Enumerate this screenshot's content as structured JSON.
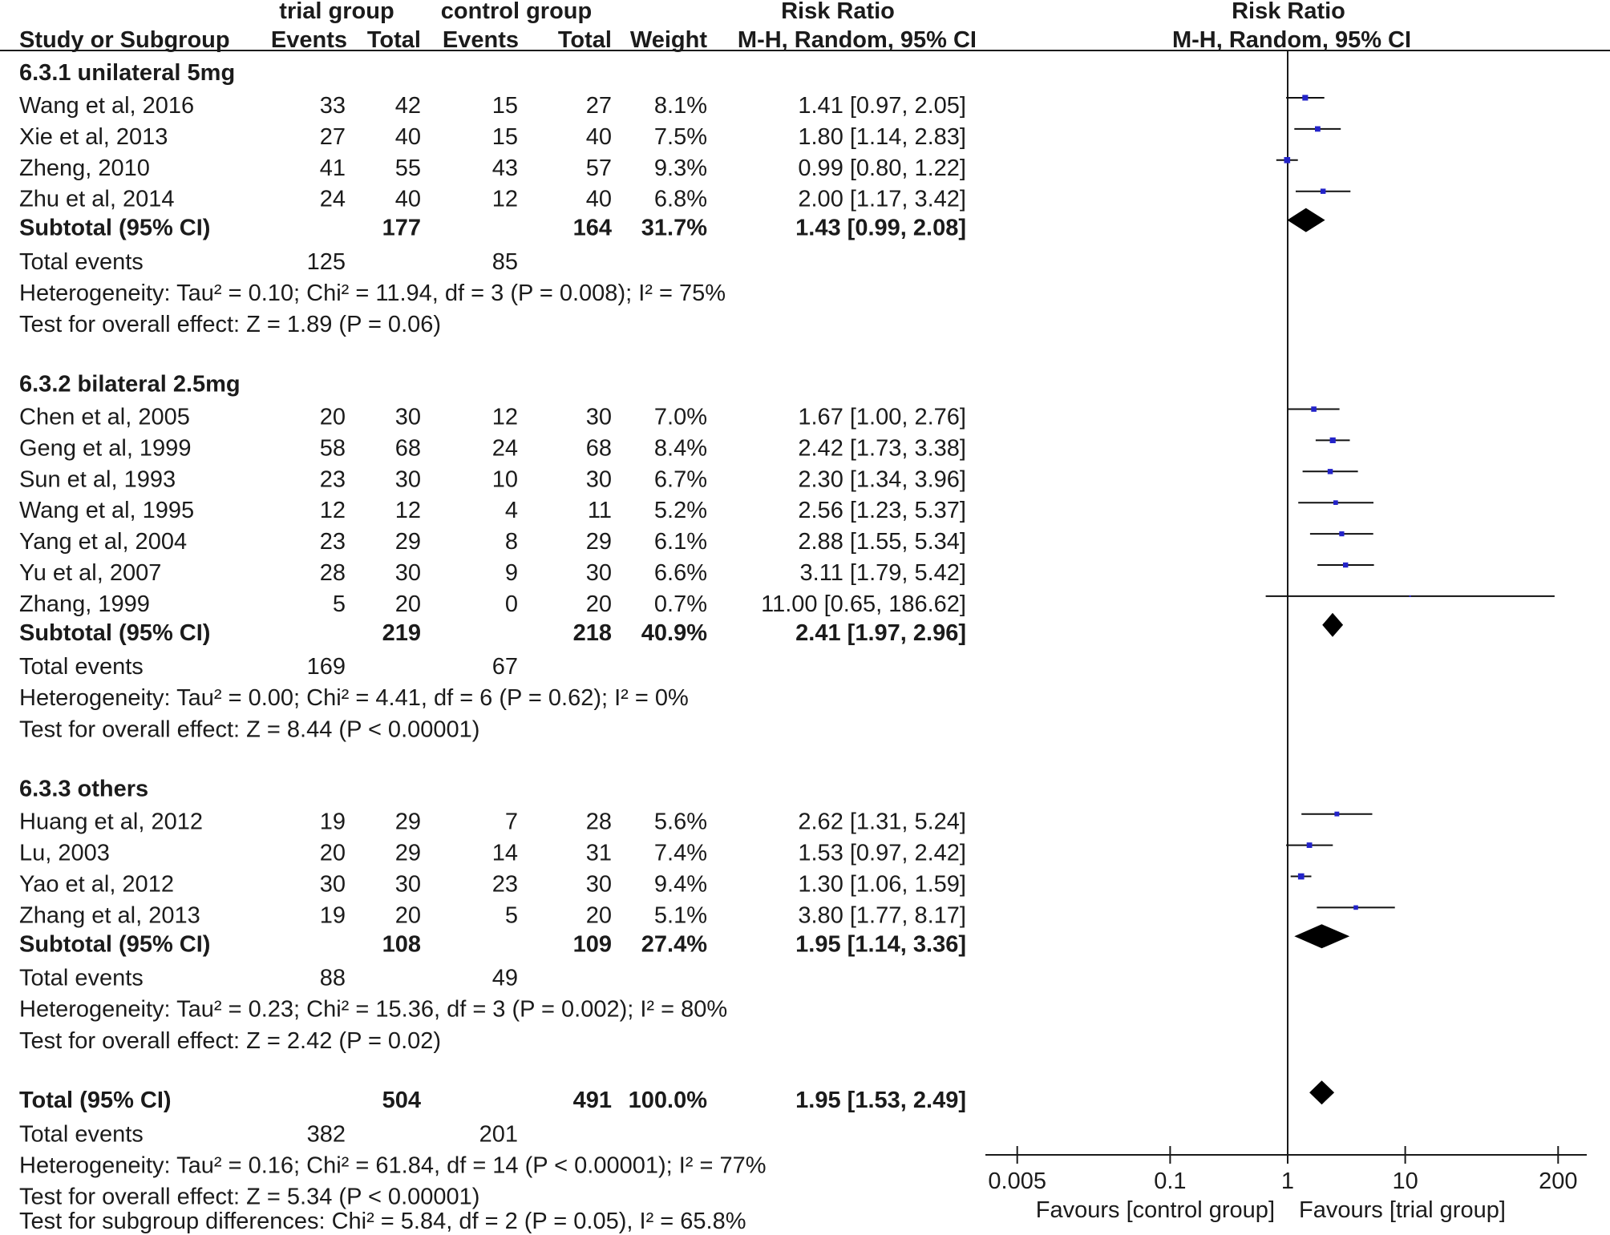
{
  "chart_data": {
    "type": "scatter",
    "title": "Risk Ratio",
    "subtitle": "M-H, Random, 95% CI",
    "columns": {
      "trial_group": "trial group",
      "control_group": "control group",
      "effect_title": "Risk Ratio",
      "study": "Study or Subgroup",
      "trial_events": "Events",
      "trial_total": "Total",
      "control_events": "Events",
      "control_total": "Total",
      "weight": "Weight",
      "effect_method": "M-H, Random, 95% CI"
    },
    "xlim": [
      0.005,
      200
    ],
    "x_ticks": [
      0.005,
      0.1,
      1,
      10,
      200
    ],
    "xlabel_left": "Favours [control group]",
    "xlabel_right": "Favours [trial group]",
    "subgroups": [
      {
        "label": "6.3.1 unilateral 5mg",
        "studies": [
          {
            "study": "Wang et al, 2016",
            "trial_events": 33,
            "trial_total": 42,
            "control_events": 15,
            "control_total": 27,
            "weight": "8.1%",
            "rr": 1.41,
            "ci_low": 0.97,
            "ci_high": 2.05,
            "effect_text": "1.41 [0.97, 2.05]"
          },
          {
            "study": "Xie et al, 2013",
            "trial_events": 27,
            "trial_total": 40,
            "control_events": 15,
            "control_total": 40,
            "weight": "7.5%",
            "rr": 1.8,
            "ci_low": 1.14,
            "ci_high": 2.83,
            "effect_text": "1.80 [1.14, 2.83]"
          },
          {
            "study": "Zheng, 2010",
            "trial_events": 41,
            "trial_total": 55,
            "control_events": 43,
            "control_total": 57,
            "weight": "9.3%",
            "rr": 0.99,
            "ci_low": 0.8,
            "ci_high": 1.22,
            "effect_text": "0.99 [0.80, 1.22]"
          },
          {
            "study": "Zhu et al, 2014",
            "trial_events": 24,
            "trial_total": 40,
            "control_events": 12,
            "control_total": 40,
            "weight": "6.8%",
            "rr": 2.0,
            "ci_low": 1.17,
            "ci_high": 3.42,
            "effect_text": "2.00 [1.17, 3.42]"
          }
        ],
        "subtotal": {
          "label": "Subtotal (95% CI)",
          "trial_total": 177,
          "control_total": 164,
          "weight": "31.7%",
          "rr": 1.43,
          "ci_low": 0.99,
          "ci_high": 2.08,
          "effect_text": "1.43 [0.99, 2.08]"
        },
        "total_events": {
          "label": "Total events",
          "trial": 125,
          "control": 85
        },
        "heterogeneity": "Heterogeneity: Tau² = 0.10; Chi² = 11.94, df = 3 (P = 0.008); I² = 75%",
        "overall_effect": "Test for overall effect: Z = 1.89 (P = 0.06)"
      },
      {
        "label": "6.3.2 bilateral 2.5mg",
        "studies": [
          {
            "study": "Chen et al, 2005",
            "trial_events": 20,
            "trial_total": 30,
            "control_events": 12,
            "control_total": 30,
            "weight": "7.0%",
            "rr": 1.67,
            "ci_low": 1.0,
            "ci_high": 2.76,
            "effect_text": "1.67 [1.00, 2.76]"
          },
          {
            "study": "Geng et al, 1999",
            "trial_events": 58,
            "trial_total": 68,
            "control_events": 24,
            "control_total": 68,
            "weight": "8.4%",
            "rr": 2.42,
            "ci_low": 1.73,
            "ci_high": 3.38,
            "effect_text": "2.42 [1.73, 3.38]"
          },
          {
            "study": "Sun et al, 1993",
            "trial_events": 23,
            "trial_total": 30,
            "control_events": 10,
            "control_total": 30,
            "weight": "6.7%",
            "rr": 2.3,
            "ci_low": 1.34,
            "ci_high": 3.96,
            "effect_text": "2.30 [1.34, 3.96]"
          },
          {
            "study": "Wang et al, 1995",
            "trial_events": 12,
            "trial_total": 12,
            "control_events": 4,
            "control_total": 11,
            "weight": "5.2%",
            "rr": 2.56,
            "ci_low": 1.23,
            "ci_high": 5.37,
            "effect_text": "2.56 [1.23, 5.37]"
          },
          {
            "study": "Yang et al, 2004",
            "trial_events": 23,
            "trial_total": 29,
            "control_events": 8,
            "control_total": 29,
            "weight": "6.1%",
            "rr": 2.88,
            "ci_low": 1.55,
            "ci_high": 5.34,
            "effect_text": "2.88 [1.55, 5.34]"
          },
          {
            "study": "Yu et al, 2007",
            "trial_events": 28,
            "trial_total": 30,
            "control_events": 9,
            "control_total": 30,
            "weight": "6.6%",
            "rr": 3.11,
            "ci_low": 1.79,
            "ci_high": 5.42,
            "effect_text": "3.11 [1.79, 5.42]"
          },
          {
            "study": "Zhang, 1999",
            "trial_events": 5,
            "trial_total": 20,
            "control_events": 0,
            "control_total": 20,
            "weight": "0.7%",
            "rr": 11.0,
            "ci_low": 0.65,
            "ci_high": 186.62,
            "effect_text": "11.00 [0.65, 186.62]"
          }
        ],
        "subtotal": {
          "label": "Subtotal (95% CI)",
          "trial_total": 219,
          "control_total": 218,
          "weight": "40.9%",
          "rr": 2.41,
          "ci_low": 1.97,
          "ci_high": 2.96,
          "effect_text": "2.41 [1.97, 2.96]"
        },
        "total_events": {
          "label": "Total events",
          "trial": 169,
          "control": 67
        },
        "heterogeneity": "Heterogeneity: Tau² = 0.00; Chi² = 4.41, df = 6 (P = 0.62); I² = 0%",
        "overall_effect": "Test for overall effect: Z = 8.44 (P < 0.00001)"
      },
      {
        "label": "6.3.3 others",
        "studies": [
          {
            "study": "Huang et al, 2012",
            "trial_events": 19,
            "trial_total": 29,
            "control_events": 7,
            "control_total": 28,
            "weight": "5.6%",
            "rr": 2.62,
            "ci_low": 1.31,
            "ci_high": 5.24,
            "effect_text": "2.62 [1.31, 5.24]"
          },
          {
            "study": "Lu, 2003",
            "trial_events": 20,
            "trial_total": 29,
            "control_events": 14,
            "control_total": 31,
            "weight": "7.4%",
            "rr": 1.53,
            "ci_low": 0.97,
            "ci_high": 2.42,
            "effect_text": "1.53 [0.97, 2.42]"
          },
          {
            "study": "Yao et al, 2012",
            "trial_events": 30,
            "trial_total": 30,
            "control_events": 23,
            "control_total": 30,
            "weight": "9.4%",
            "rr": 1.3,
            "ci_low": 1.06,
            "ci_high": 1.59,
            "effect_text": "1.30 [1.06, 1.59]"
          },
          {
            "study": "Zhang et al, 2013",
            "trial_events": 19,
            "trial_total": 20,
            "control_events": 5,
            "control_total": 20,
            "weight": "5.1%",
            "rr": 3.8,
            "ci_low": 1.77,
            "ci_high": 8.17,
            "effect_text": "3.80 [1.77, 8.17]"
          }
        ],
        "subtotal": {
          "label": "Subtotal (95% CI)",
          "trial_total": 108,
          "control_total": 109,
          "weight": "27.4%",
          "rr": 1.95,
          "ci_low": 1.14,
          "ci_high": 3.36,
          "effect_text": "1.95 [1.14, 3.36]"
        },
        "total_events": {
          "label": "Total events",
          "trial": 88,
          "control": 49
        },
        "heterogeneity": "Heterogeneity: Tau² = 0.23; Chi² = 15.36, df = 3 (P = 0.002); I² = 80%",
        "overall_effect": "Test for overall effect: Z = 2.42 (P = 0.02)"
      }
    ],
    "overall": {
      "label": "Total (95% CI)",
      "trial_total": 504,
      "control_total": 491,
      "weight": "100.0%",
      "rr": 1.95,
      "ci_low": 1.53,
      "ci_high": 2.49,
      "effect_text": "1.95 [1.53, 2.49]",
      "total_events": {
        "label": "Total events",
        "trial": 382,
        "control": 201
      },
      "heterogeneity": "Heterogeneity: Tau² = 0.16; Chi² = 61.84, df = 14 (P < 0.00001); I² = 77%",
      "overall_effect": "Test for overall effect: Z = 5.34 (P < 0.00001)",
      "subgroup_differences": "Test for subgroup differences: Chi² = 5.84, df = 2 (P = 0.05), I² = 65.8%"
    }
  }
}
